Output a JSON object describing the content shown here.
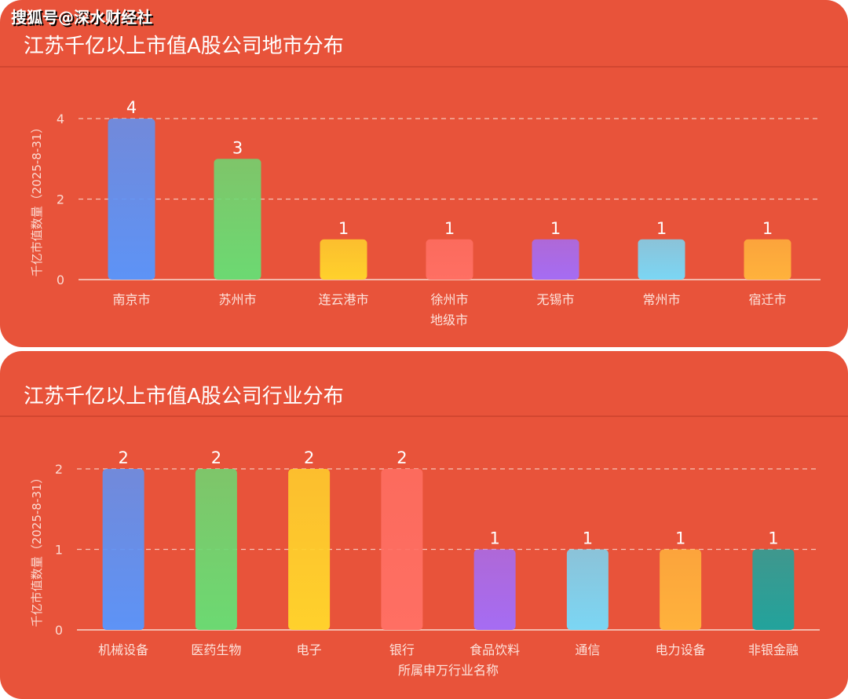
{
  "watermark": "搜狐号@深水财经社",
  "chart_data": [
    {
      "type": "bar",
      "title": "江苏千亿以上市值A股公司地市分布",
      "xlabel": "地级市",
      "ylabel": "千亿市值数量（2025-8-31）",
      "categories": [
        "南京市",
        "苏州市",
        "连云港市",
        "徐州市",
        "无锡市",
        "常州市",
        "宿迁市"
      ],
      "values": [
        4,
        3,
        1,
        1,
        1,
        1,
        1
      ],
      "colors": [
        "#5d93f6",
        "#6cd972",
        "#ffd12c",
        "#ff6f63",
        "#a56cf3",
        "#7bd6f4",
        "#ffb23c"
      ],
      "yticks": [
        0,
        2,
        4
      ],
      "ylim": [
        0,
        4
      ],
      "grid": true,
      "data_labels": true
    },
    {
      "type": "bar",
      "title": "江苏千亿以上市值A股公司行业分布",
      "xlabel": "所属申万行业名称",
      "ylabel": "千亿市值数量（2025-8-31）",
      "categories": [
        "机械设备",
        "医药生物",
        "电子",
        "银行",
        "食品饮料",
        "通信",
        "电力设备",
        "非银金融"
      ],
      "values": [
        2,
        2,
        2,
        2,
        1,
        1,
        1,
        1
      ],
      "colors": [
        "#5d93f6",
        "#6cd972",
        "#ffd12c",
        "#ff6f63",
        "#a56cf3",
        "#7bd6f4",
        "#ffb23c",
        "#22a39c"
      ],
      "yticks": [
        0,
        1,
        2
      ],
      "ylim": [
        0,
        2
      ],
      "grid": true,
      "data_labels": true
    }
  ]
}
